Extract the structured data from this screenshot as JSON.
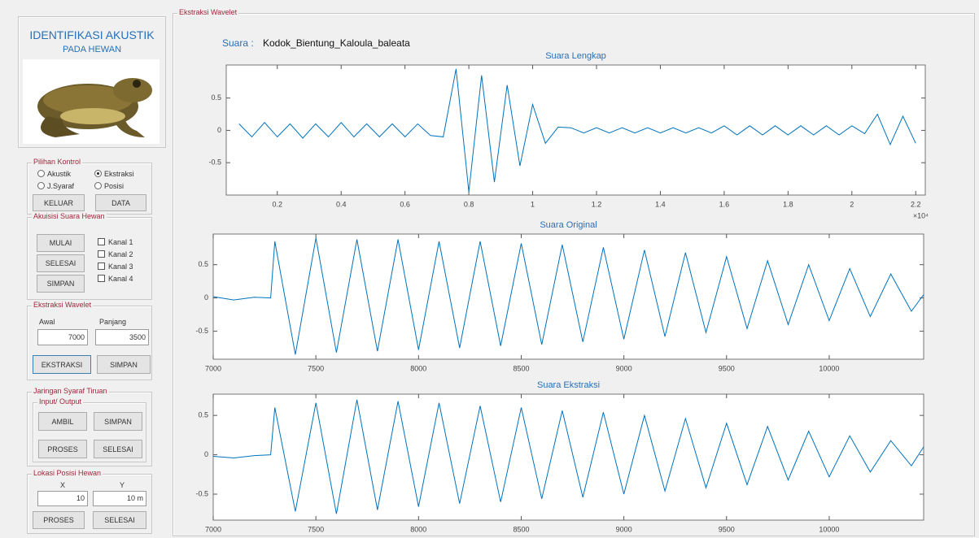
{
  "app": {
    "title": "IDENTIFIKASI AKUSTIK",
    "subtitle": "PADA HEWAN"
  },
  "kontrol": {
    "title": "Pilihan Kontrol",
    "options": [
      "Akustik",
      "Ekstraksi",
      "J.Syaraf",
      "Posisi"
    ],
    "selected": "Ekstraksi",
    "buttons": [
      "KELUAR",
      "DATA"
    ]
  },
  "akuisisi": {
    "title": "Akuisisi Suara Hewan",
    "buttons": [
      "MULAI",
      "SELESAI",
      "SIMPAN"
    ],
    "channels": [
      "Kanal 1",
      "Kanal 2",
      "Kanal 3",
      "Kanal 4"
    ]
  },
  "wavelet_panel": {
    "title": "Ekstraksi Wavelet",
    "labels": [
      "Awal",
      "Panjang"
    ],
    "inputs": [
      "7000",
      "3500"
    ],
    "buttons": [
      "EKSTRAKSI",
      "SIMPAN"
    ]
  },
  "jst": {
    "title": "Jaringan Syaraf Tiruan",
    "group": "Input/ Output",
    "buttons": [
      "AMBIL",
      "SIMPAN",
      "PROSES",
      "SELESAI"
    ]
  },
  "lokasi": {
    "title": "Lokasi Posisi Hewan",
    "labels": [
      "X",
      "Y"
    ],
    "inputs": [
      "10",
      "10 m"
    ],
    "buttons": [
      "PROSES",
      "SELESAI"
    ]
  },
  "main": {
    "title": "Ekstraksi Wavelet",
    "sound_label": "Suara :",
    "sound_name": "Kodok_Bientung_Kaloula_baleata"
  },
  "chart_data": [
    {
      "type": "line",
      "title": "Suara Lengkap",
      "color": "#0072bd",
      "x": [
        0.08,
        0.12,
        0.16,
        0.2,
        0.24,
        0.28,
        0.32,
        0.36,
        0.4,
        0.44,
        0.48,
        0.52,
        0.56,
        0.6,
        0.64,
        0.68,
        0.72,
        0.76,
        0.8,
        0.84,
        0.88,
        0.92,
        0.96,
        1,
        1.04,
        1.08,
        1.12,
        1.16,
        1.2,
        1.24,
        1.28,
        1.32,
        1.36,
        1.4,
        1.44,
        1.48,
        1.52,
        1.56,
        1.6,
        1.64,
        1.68,
        1.72,
        1.76,
        1.8,
        1.84,
        1.88,
        1.92,
        1.96,
        2,
        2.04,
        2.08,
        2.12,
        2.16,
        2.2
      ],
      "values": [
        0.1,
        -0.1,
        0.12,
        -0.1,
        0.1,
        -0.12,
        0.1,
        -0.1,
        0.12,
        -0.1,
        0.1,
        -0.1,
        0.1,
        -0.1,
        0.1,
        -0.08,
        -0.1,
        0.95,
        -0.95,
        0.85,
        -0.8,
        0.7,
        -0.55,
        0.4,
        -0.2,
        0.05,
        0.04,
        -0.04,
        0.04,
        -0.04,
        0.04,
        -0.04,
        0.04,
        -0.04,
        0.04,
        -0.04,
        0.04,
        -0.04,
        0.07,
        -0.07,
        0.07,
        -0.07,
        0.07,
        -0.07,
        0.07,
        -0.07,
        0.07,
        -0.07,
        0.07,
        -0.05,
        0.25,
        -0.22,
        0.22,
        -0.2
      ],
      "xlim": [
        0.04,
        2.23
      ],
      "ylim": [
        -1,
        1.01
      ],
      "xticks": [
        0.2,
        0.4,
        0.6,
        0.8,
        1,
        1.2,
        1.4,
        1.6,
        1.8,
        2,
        2.2
      ],
      "yticks": [
        -0.5,
        0,
        0.5
      ],
      "x_multiplier": "×10⁴"
    },
    {
      "type": "line",
      "title": "Suara Original",
      "color": "#0072bd",
      "x": [
        7000,
        7100,
        7200,
        7280,
        7300,
        7400,
        7500,
        7600,
        7700,
        7800,
        7900,
        8000,
        8100,
        8200,
        8300,
        8400,
        8500,
        8600,
        8700,
        8800,
        8900,
        9000,
        9100,
        9200,
        9300,
        9400,
        9500,
        9600,
        9700,
        9800,
        9900,
        10000,
        10100,
        10200,
        10300,
        10400,
        10460
      ],
      "values": [
        0.02,
        -0.03,
        0.01,
        0,
        0.85,
        -0.85,
        0.9,
        -0.82,
        0.88,
        -0.8,
        0.88,
        -0.78,
        0.85,
        -0.75,
        0.85,
        -0.72,
        0.82,
        -0.7,
        0.8,
        -0.66,
        0.76,
        -0.62,
        0.72,
        -0.58,
        0.68,
        -0.52,
        0.62,
        -0.46,
        0.56,
        -0.4,
        0.5,
        -0.34,
        0.44,
        -0.28,
        0.36,
        -0.2,
        0.05
      ],
      "xlim": [
        7000,
        10460
      ],
      "ylim": [
        -0.92,
        0.96
      ],
      "xticks": [
        7000,
        7500,
        8000,
        8500,
        9000,
        9500,
        10000
      ],
      "yticks": [
        -0.5,
        0,
        0.5
      ]
    },
    {
      "type": "line",
      "title": "Suara Ekstraksi",
      "color": "#0072bd",
      "x": [
        7000,
        7100,
        7200,
        7280,
        7300,
        7400,
        7500,
        7600,
        7700,
        7800,
        7900,
        8000,
        8100,
        8200,
        8300,
        8400,
        8500,
        8600,
        8700,
        8800,
        8900,
        9000,
        9100,
        9200,
        9300,
        9400,
        9500,
        9600,
        9700,
        9800,
        9900,
        10000,
        10100,
        10200,
        10300,
        10400,
        10460
      ],
      "values": [
        -0.02,
        -0.04,
        -0.01,
        0,
        0.6,
        -0.72,
        0.66,
        -0.75,
        0.7,
        -0.7,
        0.68,
        -0.66,
        0.66,
        -0.62,
        0.62,
        -0.6,
        0.6,
        -0.56,
        0.56,
        -0.54,
        0.54,
        -0.5,
        0.5,
        -0.46,
        0.46,
        -0.42,
        0.4,
        -0.38,
        0.36,
        -0.32,
        0.3,
        -0.28,
        0.24,
        -0.22,
        0.18,
        -0.14,
        0.1
      ],
      "xlim": [
        7000,
        10460
      ],
      "ylim": [
        -0.83,
        0.77
      ],
      "xticks": [
        7000,
        7500,
        8000,
        8500,
        9000,
        9500,
        10000
      ],
      "yticks": [
        -0.5,
        0,
        0.5
      ]
    }
  ]
}
